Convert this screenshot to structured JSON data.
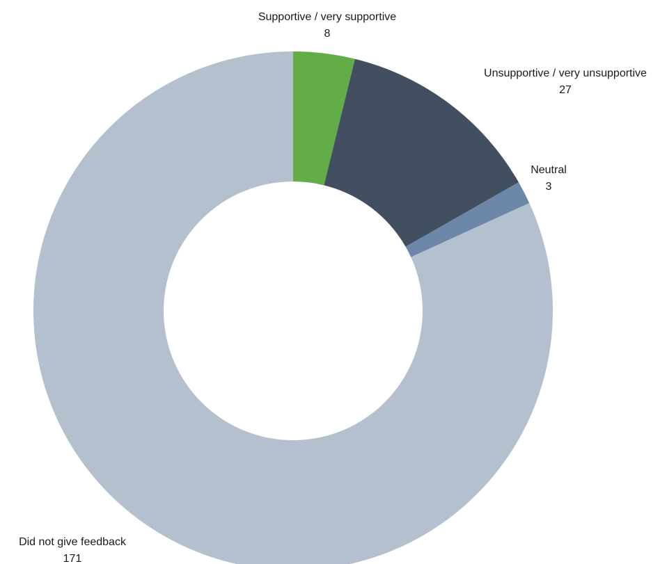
{
  "chart_data": {
    "type": "pie",
    "donut": true,
    "slices": [
      {
        "label": "Supportive / very supportive",
        "value": 8,
        "color": "#62ad47"
      },
      {
        "label": "Unsupportive / very unsupportive",
        "value": 27,
        "color": "#424f61"
      },
      {
        "label": "Neutral",
        "value": 3,
        "color": "#6d87a8"
      },
      {
        "label": "Did not give feedback",
        "value": 171,
        "color": "#b4c0ce"
      }
    ]
  }
}
